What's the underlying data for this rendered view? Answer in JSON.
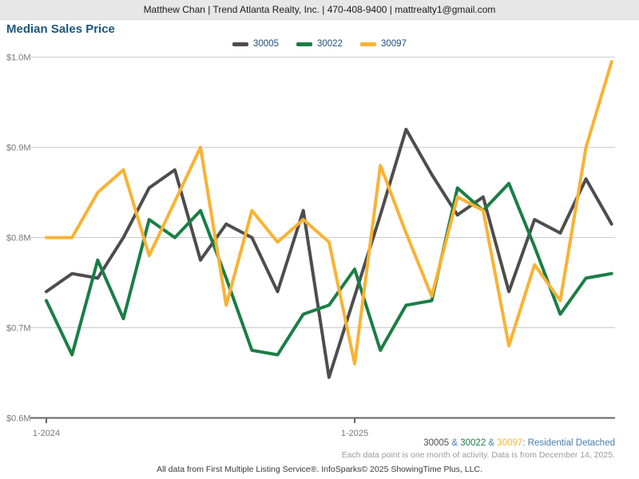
{
  "header": {
    "contact_line": "Matthew Chan | Trend Atlanta Realty, Inc. | 470-408-9400 | mattrealty1@gmail.com"
  },
  "title": "Median Sales Price",
  "legend": [
    {
      "label": "30005",
      "color": "#4d4d4d"
    },
    {
      "label": "30022",
      "color": "#1a7e45"
    },
    {
      "label": "30097",
      "color": "#f9b233"
    }
  ],
  "chart_data": {
    "type": "line",
    "title": "Median Sales Price",
    "unit": "$M",
    "ylim": [
      0.6,
      1.0
    ],
    "grid": "horizontal",
    "legend_position": "top-center",
    "y_ticks": [
      {
        "label": "$1.0M",
        "value": 1.0
      },
      {
        "label": "$0.9M",
        "value": 0.9
      },
      {
        "label": "$0.8M",
        "value": 0.8
      },
      {
        "label": "$0.7M",
        "value": 0.7
      },
      {
        "label": "$0.6M",
        "value": 0.6
      }
    ],
    "x_tick_labels": [
      {
        "label": "1-2024",
        "month_index": 0
      },
      {
        "label": "1-2025",
        "month_index": 12
      }
    ],
    "months": [
      "1-2024",
      "2-2024",
      "3-2024",
      "4-2024",
      "5-2024",
      "6-2024",
      "7-2024",
      "8-2024",
      "9-2024",
      "10-2024",
      "11-2024",
      "12-2024",
      "1-2025",
      "2-2025",
      "3-2025",
      "4-2025",
      "5-2025",
      "6-2025",
      "7-2025",
      "8-2025",
      "9-2025",
      "10-2025",
      "11-2025"
    ],
    "series": [
      {
        "name": "30005",
        "color": "#4d4d4d",
        "values": [
          0.74,
          0.76,
          0.755,
          0.8,
          0.855,
          0.875,
          0.775,
          0.815,
          0.8,
          0.74,
          0.83,
          0.645,
          0.735,
          0.825,
          0.92,
          0.87,
          0.825,
          0.845,
          0.74,
          0.82,
          0.805,
          0.865,
          0.815
        ]
      },
      {
        "name": "30022",
        "color": "#1a7e45",
        "values": [
          0.73,
          0.67,
          0.775,
          0.71,
          0.82,
          0.8,
          0.83,
          0.755,
          0.675,
          0.67,
          0.715,
          0.725,
          0.765,
          0.675,
          0.725,
          0.73,
          0.855,
          0.83,
          0.86,
          0.79,
          0.715,
          0.755,
          0.76
        ]
      },
      {
        "name": "30097",
        "color": "#f9b233",
        "values": [
          0.8,
          0.8,
          0.85,
          0.875,
          0.78,
          0.84,
          0.9,
          0.725,
          0.83,
          0.795,
          0.82,
          0.795,
          0.66,
          0.88,
          0.805,
          0.735,
          0.845,
          0.83,
          0.68,
          0.77,
          0.73,
          0.9,
          0.995
        ]
      }
    ]
  },
  "footer": {
    "attribution": {
      "zip1": "30005",
      "amp1": " & ",
      "zip2": "30022",
      "amp2": " & ",
      "zip3": "30097",
      "suffix": ": Residential Detached"
    },
    "note": "Each data point is one month of activity. Data is from December 14, 2025.",
    "copyright": "All data from First Multiple Listing Service®. InfoSparks© 2025 ShowingTime Plus, LLC."
  }
}
